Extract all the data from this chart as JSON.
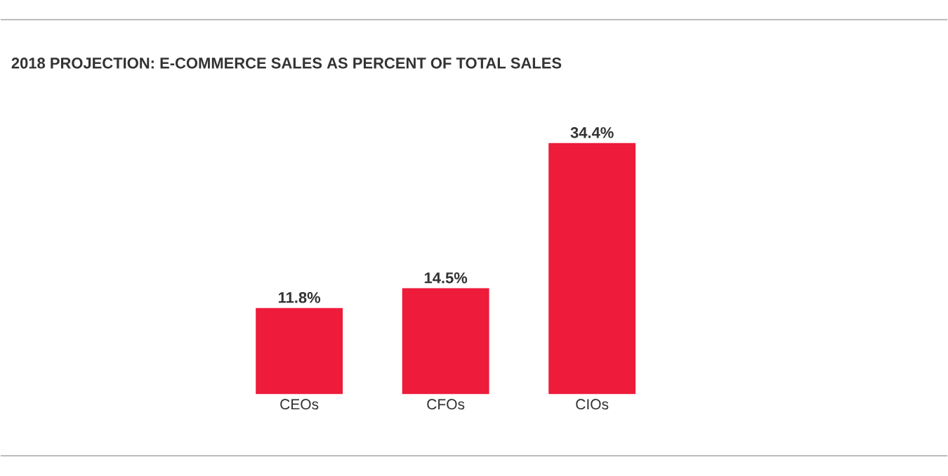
{
  "chart_data": {
    "type": "bar",
    "title": "2018 PROJECTION: E-COMMERCE SALES AS PERCENT OF TOTAL SALES",
    "categories": [
      "CEOs",
      "CFOs",
      "CIOs"
    ],
    "values": [
      11.8,
      14.5,
      34.4
    ],
    "value_labels": [
      "11.8%",
      "14.5%",
      "34.4%"
    ],
    "color": "#ee1b3b"
  }
}
